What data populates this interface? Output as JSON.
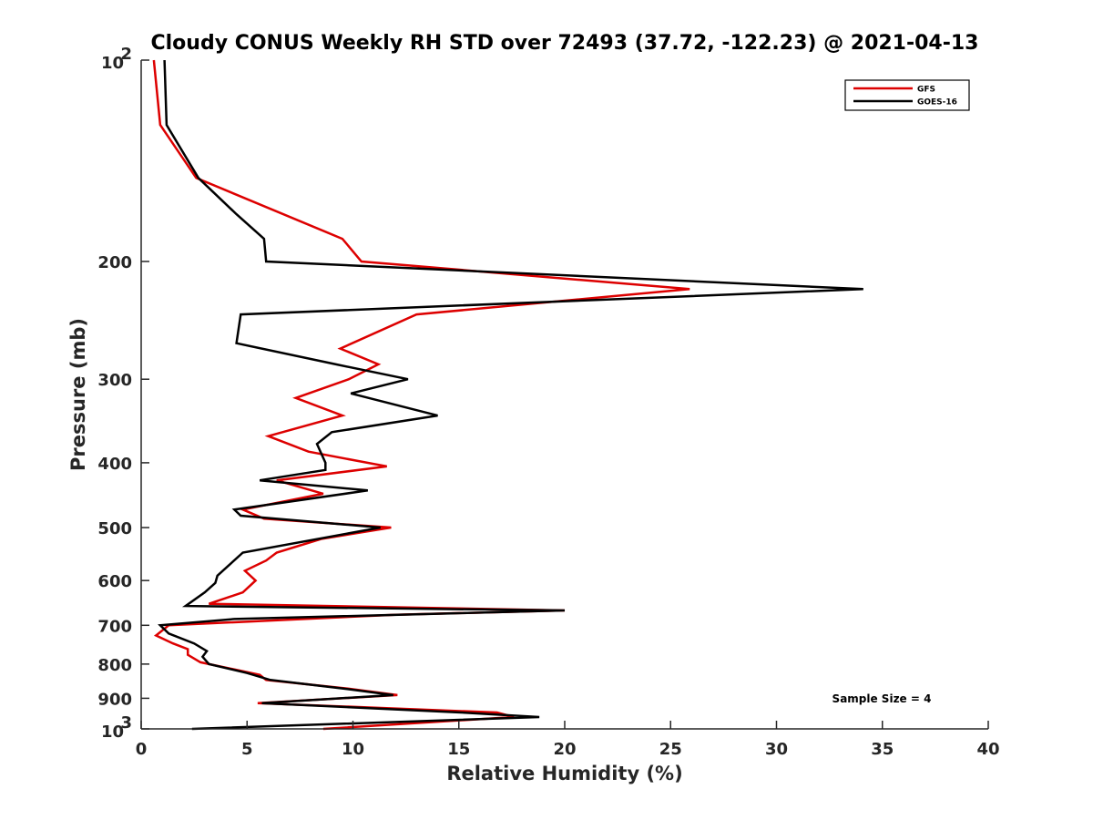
{
  "chart_data": {
    "type": "line",
    "title": "Cloudy CONUS Weekly RH STD over 72493 (37.72, -122.23) @ 2021-04-13",
    "xlabel": "Relative Humidity (%)",
    "ylabel": "Pressure (mb)",
    "xlim": [
      0,
      40
    ],
    "ylim": [
      100,
      1000
    ],
    "y_scale": "log",
    "y_reversed": true,
    "grid": false,
    "legend_position": "top-right",
    "x_ticks": [
      "0",
      "5",
      "10",
      "15",
      "20",
      "25",
      "30",
      "35",
      "40"
    ],
    "y_ticks": [
      {
        "value": 100,
        "base": "10",
        "exp": "2"
      },
      {
        "value": 200,
        "label": "200"
      },
      {
        "value": 300,
        "label": "300"
      },
      {
        "value": 400,
        "label": "400"
      },
      {
        "value": 500,
        "label": "500"
      },
      {
        "value": 600,
        "label": "600"
      },
      {
        "value": 700,
        "label": "700"
      },
      {
        "value": 800,
        "label": "800"
      },
      {
        "value": 900,
        "label": "900"
      },
      {
        "value": 1000,
        "base": "10",
        "exp": "3"
      }
    ],
    "annotation": "Sample Size = 4",
    "series": [
      {
        "name": "GFS",
        "color": "#dd0000",
        "points": [
          [
            0.6,
            100
          ],
          [
            0.9,
            125
          ],
          [
            2.6,
            150
          ],
          [
            9.5,
            185
          ],
          [
            10.4,
            200
          ],
          [
            25.9,
            220
          ],
          [
            13.0,
            240
          ],
          [
            9.4,
            270
          ],
          [
            11.2,
            285
          ],
          [
            9.8,
            300
          ],
          [
            7.3,
            320
          ],
          [
            9.5,
            340
          ],
          [
            6.0,
            365
          ],
          [
            7.9,
            385
          ],
          [
            11.6,
            405
          ],
          [
            6.4,
            425
          ],
          [
            8.6,
            445
          ],
          [
            4.8,
            470
          ],
          [
            5.8,
            485
          ],
          [
            11.8,
            500
          ],
          [
            8.5,
            520
          ],
          [
            6.4,
            545
          ],
          [
            5.9,
            560
          ],
          [
            4.9,
            580
          ],
          [
            5.4,
            600
          ],
          [
            4.8,
            625
          ],
          [
            3.2,
            650
          ],
          [
            20.0,
            665
          ],
          [
            12.0,
            675
          ],
          [
            1.3,
            700
          ],
          [
            0.7,
            725
          ],
          [
            1.5,
            745
          ],
          [
            2.2,
            760
          ],
          [
            2.2,
            775
          ],
          [
            2.8,
            795
          ],
          [
            5.6,
            830
          ],
          [
            5.9,
            845
          ],
          [
            9.7,
            870
          ],
          [
            12.1,
            890
          ],
          [
            5.5,
            915
          ],
          [
            16.8,
            945
          ],
          [
            17.6,
            960
          ],
          [
            8.6,
            1000
          ]
        ]
      },
      {
        "name": "GOES-16",
        "color": "#000000",
        "points": [
          [
            1.1,
            100
          ],
          [
            1.2,
            125
          ],
          [
            2.7,
            150
          ],
          [
            4.5,
            170
          ],
          [
            5.8,
            185
          ],
          [
            5.9,
            200
          ],
          [
            34.1,
            220
          ],
          [
            4.7,
            240
          ],
          [
            4.5,
            265
          ],
          [
            9.2,
            285
          ],
          [
            12.6,
            300
          ],
          [
            9.9,
            315
          ],
          [
            14.0,
            340
          ],
          [
            9.0,
            360
          ],
          [
            8.3,
            375
          ],
          [
            8.7,
            400
          ],
          [
            8.7,
            410
          ],
          [
            5.6,
            425
          ],
          [
            10.7,
            440
          ],
          [
            4.4,
            470
          ],
          [
            4.7,
            480
          ],
          [
            11.3,
            500
          ],
          [
            4.8,
            545
          ],
          [
            3.6,
            590
          ],
          [
            3.5,
            605
          ],
          [
            3.0,
            625
          ],
          [
            2.1,
            655
          ],
          [
            20.0,
            665
          ],
          [
            4.4,
            685
          ],
          [
            0.9,
            700
          ],
          [
            1.3,
            720
          ],
          [
            2.5,
            745
          ],
          [
            3.1,
            765
          ],
          [
            2.9,
            780
          ],
          [
            3.2,
            800
          ],
          [
            5.0,
            825
          ],
          [
            6.1,
            845
          ],
          [
            9.5,
            870
          ],
          [
            11.9,
            890
          ],
          [
            5.7,
            915
          ],
          [
            15.1,
            945
          ],
          [
            18.8,
            960
          ],
          [
            2.4,
            1000
          ]
        ]
      }
    ]
  }
}
